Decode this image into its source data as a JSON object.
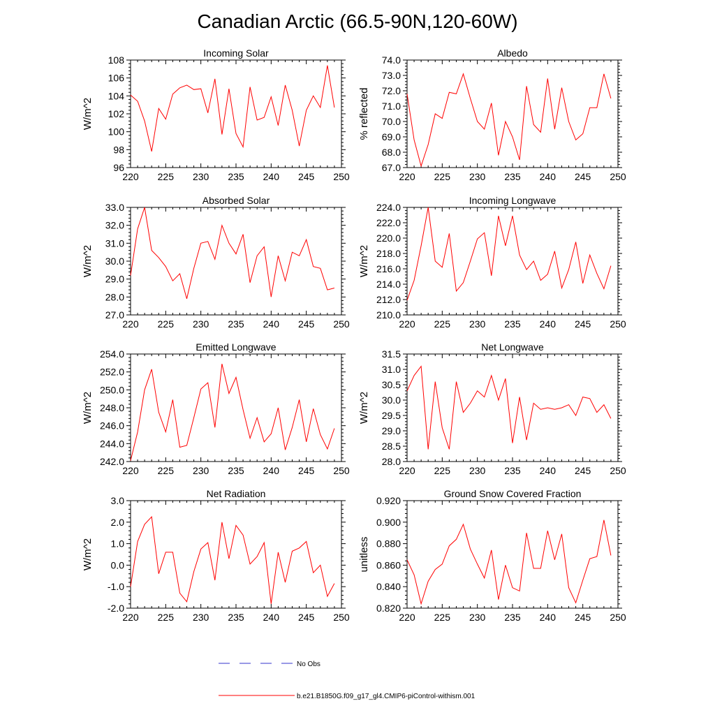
{
  "title": "Canadian Arctic (66.5-90N,120-60W)",
  "colors": {
    "model": "#ff0000",
    "obs": "#3333cc",
    "axis": "#000000"
  },
  "legend": {
    "obs_label": "No Obs",
    "model_label": "b.e21.B1850G.f09_g17_gl4.CMIP6-piControl-withism.001"
  },
  "chart_data": [
    {
      "type": "line",
      "title": "Incoming Solar",
      "ylabel": "W/m^2",
      "xlabel": "",
      "xlim": [
        220,
        250
      ],
      "ylim": [
        96,
        108
      ],
      "xticks": [
        220,
        225,
        230,
        235,
        240,
        245,
        250
      ],
      "xtick_labels": [
        "220",
        "225",
        "230",
        "235",
        "240",
        "245",
        "250"
      ],
      "yticks": [
        96,
        98,
        100,
        102,
        104,
        106,
        108
      ],
      "ytick_labels": [
        "96",
        "98",
        "100",
        "102",
        "104",
        "106",
        "108"
      ],
      "series": [
        {
          "name": "b.e21.B1850G.f09_g17_gl4.CMIP6-piControl-withism.001",
          "x": [
            220,
            221,
            222,
            223,
            224,
            225,
            226,
            227,
            228,
            229,
            230,
            231,
            232,
            233,
            234,
            235,
            236,
            237,
            238,
            239,
            240,
            241,
            242,
            243,
            244,
            245,
            246,
            247,
            248,
            249
          ],
          "values": [
            104.1,
            103.4,
            101.2,
            97.8,
            102.6,
            101.4,
            104.2,
            104.9,
            105.2,
            104.7,
            104.8,
            102.1,
            105.9,
            99.7,
            104.8,
            99.8,
            98.3,
            105.0,
            101.3,
            101.6,
            103.9,
            100.7,
            105.2,
            102.4,
            98.4,
            102.4,
            104.0,
            102.7,
            107.4,
            102.7
          ]
        }
      ]
    },
    {
      "type": "line",
      "title": "Albedo",
      "ylabel": "% reflected",
      "xlabel": "",
      "xlim": [
        220,
        250
      ],
      "ylim": [
        67,
        74
      ],
      "xticks": [
        220,
        225,
        230,
        235,
        240,
        245,
        250
      ],
      "xtick_labels": [
        "220",
        "225",
        "230",
        "235",
        "240",
        "245",
        "250"
      ],
      "yticks": [
        67,
        68,
        69,
        70,
        71,
        72,
        73,
        74
      ],
      "ytick_labels": [
        "67.0",
        "68.0",
        "69.0",
        "70.0",
        "71.0",
        "72.0",
        "73.0",
        "74.0"
      ],
      "series": [
        {
          "name": "b.e21.B1850G.f09_g17_gl4.CMIP6-piControl-withism.001",
          "x": [
            220,
            221,
            222,
            223,
            224,
            225,
            226,
            227,
            228,
            229,
            230,
            231,
            232,
            233,
            234,
            235,
            236,
            237,
            238,
            239,
            240,
            241,
            242,
            243,
            244,
            245,
            246,
            247,
            248,
            249
          ],
          "values": [
            71.8,
            68.8,
            67.1,
            68.5,
            70.5,
            70.2,
            71.9,
            71.8,
            73.1,
            71.5,
            70.0,
            69.5,
            71.2,
            67.8,
            70.0,
            69.0,
            67.5,
            72.3,
            69.8,
            69.3,
            72.8,
            69.5,
            72.2,
            70.0,
            68.8,
            69.2,
            70.9,
            70.9,
            73.1,
            71.5
          ]
        }
      ]
    },
    {
      "type": "line",
      "title": "Absorbed Solar",
      "ylabel": "W/m^2",
      "xlabel": "",
      "xlim": [
        220,
        250
      ],
      "ylim": [
        27,
        33
      ],
      "xticks": [
        220,
        225,
        230,
        235,
        240,
        245,
        250
      ],
      "xtick_labels": [
        "220",
        "225",
        "230",
        "235",
        "240",
        "245",
        "250"
      ],
      "yticks": [
        27,
        28,
        29,
        30,
        31,
        32,
        33
      ],
      "ytick_labels": [
        "27.0",
        "28.0",
        "29.0",
        "30.0",
        "31.0",
        "32.0",
        "33.0"
      ],
      "series": [
        {
          "name": "b.e21.B1850G.f09_g17_gl4.CMIP6-piControl-withism.001",
          "x": [
            220,
            221,
            222,
            223,
            224,
            225,
            226,
            227,
            228,
            229,
            230,
            231,
            232,
            233,
            234,
            235,
            236,
            237,
            238,
            239,
            240,
            241,
            242,
            243,
            244,
            245,
            246,
            247,
            248,
            249
          ],
          "values": [
            29.2,
            31.8,
            33.0,
            30.6,
            30.2,
            29.7,
            28.9,
            29.3,
            27.9,
            29.6,
            31.0,
            31.1,
            30.1,
            32.0,
            31.0,
            30.4,
            31.5,
            28.8,
            30.3,
            30.8,
            28.0,
            30.3,
            28.9,
            30.5,
            30.3,
            31.2,
            29.7,
            29.6,
            28.4,
            28.5
          ]
        }
      ]
    },
    {
      "type": "line",
      "title": "Incoming Longwave",
      "ylabel": "W/m^2",
      "xlabel": "",
      "xlim": [
        220,
        250
      ],
      "ylim": [
        210,
        224
      ],
      "xticks": [
        220,
        225,
        230,
        235,
        240,
        245,
        250
      ],
      "xtick_labels": [
        "220",
        "225",
        "230",
        "235",
        "240",
        "245",
        "250"
      ],
      "yticks": [
        210,
        212,
        214,
        216,
        218,
        220,
        222,
        224
      ],
      "ytick_labels": [
        "210.0",
        "212.0",
        "214.0",
        "216.0",
        "218.0",
        "220.0",
        "222.0",
        "224.0"
      ],
      "series": [
        {
          "name": "b.e21.B1850G.f09_g17_gl4.CMIP6-piControl-withism.001",
          "x": [
            220,
            221,
            222,
            223,
            224,
            225,
            226,
            227,
            228,
            229,
            230,
            231,
            232,
            233,
            234,
            235,
            236,
            237,
            238,
            239,
            240,
            241,
            242,
            243,
            244,
            245,
            246,
            247,
            248,
            249
          ],
          "values": [
            211.9,
            214.5,
            219.0,
            224.0,
            217.0,
            216.2,
            220.6,
            213.1,
            214.2,
            217.0,
            219.9,
            220.7,
            215.1,
            222.9,
            219.0,
            222.9,
            217.8,
            215.9,
            217.0,
            214.5,
            215.3,
            218.3,
            213.5,
            215.9,
            219.5,
            214.1,
            217.8,
            215.4,
            213.4,
            216.4
          ]
        }
      ]
    },
    {
      "type": "line",
      "title": "Emitted Longwave",
      "ylabel": "W/m^2",
      "xlabel": "",
      "xlim": [
        220,
        250
      ],
      "ylim": [
        242,
        254
      ],
      "xticks": [
        220,
        225,
        230,
        235,
        240,
        245,
        250
      ],
      "xtick_labels": [
        "220",
        "225",
        "230",
        "235",
        "240",
        "245",
        "250"
      ],
      "yticks": [
        242,
        244,
        246,
        248,
        250,
        252,
        254
      ],
      "ytick_labels": [
        "242.0",
        "244.0",
        "246.0",
        "248.0",
        "250.0",
        "252.0",
        "254.0"
      ],
      "series": [
        {
          "name": "b.e21.B1850G.f09_g17_gl4.CMIP6-piControl-withism.001",
          "x": [
            220,
            221,
            222,
            223,
            224,
            225,
            226,
            227,
            228,
            229,
            230,
            231,
            232,
            233,
            234,
            235,
            236,
            237,
            238,
            239,
            240,
            241,
            242,
            243,
            244,
            245,
            246,
            247,
            248,
            249
          ],
          "values": [
            242.1,
            245.3,
            250.0,
            252.3,
            247.5,
            245.3,
            248.9,
            243.6,
            243.8,
            246.9,
            250.1,
            250.8,
            245.8,
            252.9,
            249.6,
            251.4,
            247.8,
            244.6,
            246.9,
            244.2,
            245.1,
            248.0,
            243.3,
            245.8,
            248.9,
            244.2,
            247.9,
            245.0,
            243.4,
            245.7
          ]
        }
      ]
    },
    {
      "type": "line",
      "title": "Net Longwave",
      "ylabel": "W/m^2",
      "xlabel": "",
      "xlim": [
        220,
        250
      ],
      "ylim": [
        28,
        31.5
      ],
      "xticks": [
        220,
        225,
        230,
        235,
        240,
        245,
        250
      ],
      "xtick_labels": [
        "220",
        "225",
        "230",
        "235",
        "240",
        "245",
        "250"
      ],
      "yticks": [
        28,
        28.5,
        29,
        29.5,
        30,
        30.5,
        31,
        31.5
      ],
      "ytick_labels": [
        "28.0",
        "28.5",
        "29.0",
        "29.5",
        "30.0",
        "30.5",
        "31.0",
        "31.5"
      ],
      "series": [
        {
          "name": "b.e21.B1850G.f09_g17_gl4.CMIP6-piControl-withism.001",
          "x": [
            220,
            221,
            222,
            223,
            224,
            225,
            226,
            227,
            228,
            229,
            230,
            231,
            232,
            233,
            234,
            235,
            236,
            237,
            238,
            239,
            240,
            241,
            242,
            243,
            244,
            245,
            246,
            247,
            248,
            249
          ],
          "values": [
            30.3,
            30.8,
            31.1,
            28.4,
            30.6,
            29.1,
            28.4,
            30.6,
            29.6,
            29.9,
            30.3,
            30.1,
            30.8,
            30.0,
            30.7,
            28.6,
            30.1,
            28.7,
            29.9,
            29.7,
            29.75,
            29.7,
            29.75,
            29.85,
            29.5,
            30.1,
            30.05,
            29.6,
            29.85,
            29.4
          ]
        }
      ]
    },
    {
      "type": "line",
      "title": "Net Radiation",
      "ylabel": "W/m^2",
      "xlabel": "",
      "xlim": [
        220,
        250
      ],
      "ylim": [
        -2,
        3
      ],
      "xticks": [
        220,
        225,
        230,
        235,
        240,
        245,
        250
      ],
      "xtick_labels": [
        "220",
        "225",
        "230",
        "235",
        "240",
        "245",
        "250"
      ],
      "yticks": [
        -2,
        -1,
        0,
        1,
        2,
        3
      ],
      "ytick_labels": [
        "-2.0",
        "-1.0",
        "0.0",
        "1.0",
        "2.0",
        "3.0"
      ],
      "series": [
        {
          "name": "b.e21.B1850G.f09_g17_gl4.CMIP6-piControl-withism.001",
          "x": [
            220,
            221,
            222,
            223,
            224,
            225,
            226,
            227,
            228,
            229,
            230,
            231,
            232,
            233,
            234,
            235,
            236,
            237,
            238,
            239,
            240,
            241,
            242,
            243,
            244,
            245,
            246,
            247,
            248,
            249
          ],
          "values": [
            -1.0,
            1.1,
            1.9,
            2.25,
            -0.4,
            0.6,
            0.6,
            -1.3,
            -1.7,
            -0.3,
            0.75,
            1.05,
            -0.7,
            2.0,
            0.3,
            1.85,
            1.4,
            0.05,
            0.4,
            1.05,
            -1.8,
            0.6,
            -0.8,
            0.65,
            0.8,
            1.1,
            -0.35,
            0.0,
            -1.45,
            -0.85
          ]
        }
      ]
    },
    {
      "type": "line",
      "title": "Ground Snow Covered Fraction",
      "ylabel": "unitless",
      "xlabel": "",
      "xlim": [
        220,
        250
      ],
      "ylim": [
        0.82,
        0.92
      ],
      "xticks": [
        220,
        225,
        230,
        235,
        240,
        245,
        250
      ],
      "xtick_labels": [
        "220",
        "225",
        "230",
        "235",
        "240",
        "245",
        "250"
      ],
      "yticks": [
        0.82,
        0.84,
        0.86,
        0.88,
        0.9,
        0.92
      ],
      "ytick_labels": [
        "0.820",
        "0.840",
        "0.860",
        "0.880",
        "0.900",
        "0.920"
      ],
      "series": [
        {
          "name": "b.e21.B1850G.f09_g17_gl4.CMIP6-piControl-withism.001",
          "x": [
            220,
            221,
            222,
            223,
            224,
            225,
            226,
            227,
            228,
            229,
            230,
            231,
            232,
            233,
            234,
            235,
            236,
            237,
            238,
            239,
            240,
            241,
            242,
            243,
            244,
            245,
            246,
            247,
            248,
            249
          ],
          "values": [
            0.865,
            0.851,
            0.824,
            0.845,
            0.856,
            0.861,
            0.878,
            0.884,
            0.898,
            0.875,
            0.861,
            0.848,
            0.874,
            0.828,
            0.86,
            0.839,
            0.836,
            0.89,
            0.857,
            0.857,
            0.892,
            0.865,
            0.889,
            0.839,
            0.825,
            0.846,
            0.866,
            0.868,
            0.902,
            0.869
          ]
        }
      ]
    }
  ]
}
